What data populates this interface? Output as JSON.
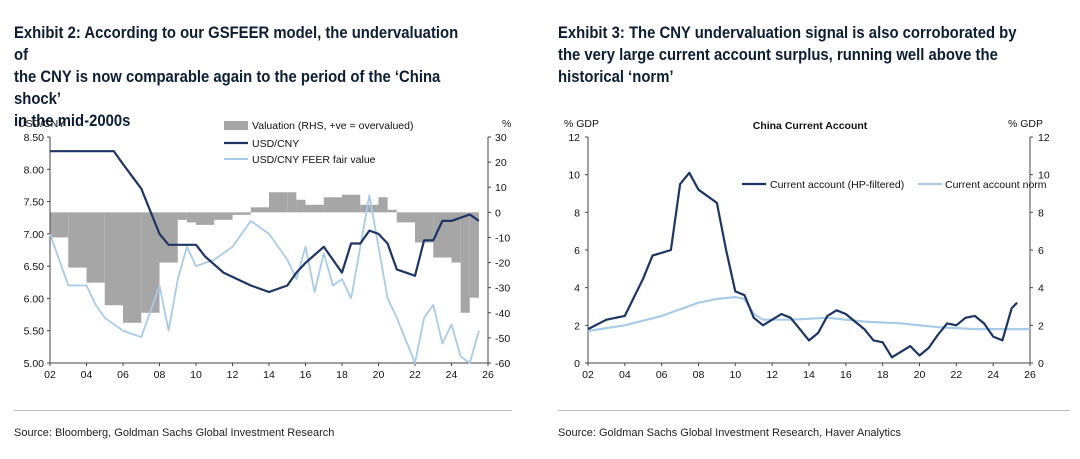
{
  "panel_left": {
    "title_lines": [
      "Exhibit 2: According to our GSFEER model, the undervaluation of",
      "the CNY is now comparable again to the period of the ‘China shock’",
      "in the mid-2000s"
    ],
    "source": "Source: Bloomberg, Goldman Sachs Global Investment Research"
  },
  "panel_right": {
    "title_lines": [
      "Exhibit 3: The CNY undervaluation signal is also corroborated by",
      "the very large current account surplus, running well above the",
      "historical ‘norm’"
    ],
    "source": "Source: Goldman Sachs Global Investment Research, Haver Analytics"
  },
  "colors": {
    "navy": "#1c3565",
    "lightblue": "#a8cbe8",
    "gray": "#a6a6a6",
    "title": "#0d1d33"
  },
  "chart_data": [
    {
      "type": "line",
      "title": "",
      "left_axis_label": "USD/CNY",
      "right_axis_label": "%",
      "ylim": [
        5.0,
        8.5
      ],
      "yticks": [
        "5.00",
        "5.50",
        "6.00",
        "6.50",
        "7.00",
        "7.50",
        "8.00",
        "8.50"
      ],
      "y2lim": [
        -60,
        30
      ],
      "y2ticks": [
        "-60",
        "-50",
        "-40",
        "-30",
        "-20",
        "-10",
        "0",
        "10",
        "20",
        "30"
      ],
      "xlim": [
        2002,
        2026
      ],
      "xticks": [
        "02",
        "04",
        "06",
        "08",
        "10",
        "12",
        "14",
        "16",
        "18",
        "20",
        "22",
        "24",
        "26"
      ],
      "legend": [
        "Valuation (RHS, +ve = overvalued)",
        "USD/CNY",
        "USD/CNY FEER fair value"
      ],
      "series": [
        {
          "name": "Valuation (RHS, +ve = overvalued)",
          "kind": "bar",
          "axis": "right",
          "color": "#a6a6a6",
          "points": [
            [
              2002,
              -10
            ],
            [
              2003,
              -22
            ],
            [
              2004,
              -28
            ],
            [
              2005,
              -37
            ],
            [
              2006,
              -44
            ],
            [
              2007,
              -40
            ],
            [
              2008,
              -20
            ],
            [
              2009,
              -3
            ],
            [
              2009.5,
              -4
            ],
            [
              2010,
              -5
            ],
            [
              2011,
              -3
            ],
            [
              2012,
              -1
            ],
            [
              2013,
              2
            ],
            [
              2014,
              8
            ],
            [
              2015,
              8
            ],
            [
              2015.5,
              5
            ],
            [
              2016,
              3
            ],
            [
              2017,
              6
            ],
            [
              2018,
              7
            ],
            [
              2019,
              3
            ],
            [
              2020,
              6
            ],
            [
              2020.5,
              1
            ],
            [
              2021,
              -4
            ],
            [
              2022,
              -12
            ],
            [
              2023,
              -18
            ],
            [
              2024,
              -20
            ],
            [
              2024.5,
              -40
            ],
            [
              2025,
              -34
            ]
          ]
        },
        {
          "name": "USD/CNY",
          "kind": "line",
          "axis": "left",
          "color": "#1c3565",
          "points": [
            [
              2002,
              8.28
            ],
            [
              2004,
              8.28
            ],
            [
              2005.5,
              8.28
            ],
            [
              2006,
              8.08
            ],
            [
              2007,
              7.7
            ],
            [
              2008,
              7.0
            ],
            [
              2008.5,
              6.83
            ],
            [
              2010,
              6.83
            ],
            [
              2010.5,
              6.65
            ],
            [
              2011.5,
              6.4
            ],
            [
              2013,
              6.2
            ],
            [
              2014,
              6.1
            ],
            [
              2015,
              6.2
            ],
            [
              2015.5,
              6.4
            ],
            [
              2016,
              6.55
            ],
            [
              2017,
              6.8
            ],
            [
              2017.5,
              6.6
            ],
            [
              2018,
              6.4
            ],
            [
              2018.5,
              6.85
            ],
            [
              2019,
              6.85
            ],
            [
              2019.5,
              7.05
            ],
            [
              2020,
              7.0
            ],
            [
              2020.5,
              6.85
            ],
            [
              2021,
              6.45
            ],
            [
              2021.5,
              6.4
            ],
            [
              2022,
              6.35
            ],
            [
              2022.5,
              6.9
            ],
            [
              2023,
              6.9
            ],
            [
              2023.5,
              7.2
            ],
            [
              2024,
              7.2
            ],
            [
              2024.5,
              7.25
            ],
            [
              2025,
              7.3
            ],
            [
              2025.5,
              7.2
            ]
          ]
        },
        {
          "name": "USD/CNY FEER fair value",
          "kind": "line",
          "axis": "left",
          "color": "#a8cbe8",
          "points": [
            [
              2002,
              7.0
            ],
            [
              2003,
              6.2
            ],
            [
              2004,
              6.2
            ],
            [
              2004.5,
              5.9
            ],
            [
              2005,
              5.7
            ],
            [
              2006,
              5.5
            ],
            [
              2007,
              5.4
            ],
            [
              2008,
              6.2
            ],
            [
              2008.5,
              5.5
            ],
            [
              2009,
              6.3
            ],
            [
              2009.5,
              6.8
            ],
            [
              2010,
              6.5
            ],
            [
              2011,
              6.6
            ],
            [
              2012,
              6.8
            ],
            [
              2013,
              7.2
            ],
            [
              2014,
              7.0
            ],
            [
              2015,
              6.6
            ],
            [
              2015.5,
              6.3
            ],
            [
              2016,
              6.8
            ],
            [
              2016.5,
              6.1
            ],
            [
              2017,
              6.7
            ],
            [
              2017.5,
              6.2
            ],
            [
              2018,
              6.3
            ],
            [
              2018.5,
              6.0
            ],
            [
              2019,
              6.8
            ],
            [
              2019.5,
              7.6
            ],
            [
              2020,
              6.8
            ],
            [
              2020.5,
              6.0
            ],
            [
              2021,
              5.7
            ],
            [
              2022,
              5.0
            ],
            [
              2022.5,
              5.7
            ],
            [
              2023,
              5.9
            ],
            [
              2023.5,
              5.3
            ],
            [
              2024,
              5.6
            ],
            [
              2024.5,
              5.1
            ],
            [
              2025,
              5.0
            ],
            [
              2025.5,
              5.5
            ]
          ]
        }
      ]
    },
    {
      "type": "line",
      "title": "China Current Account",
      "left_axis_label": "% GDP",
      "right_axis_label": "% GDP",
      "ylim": [
        0,
        12
      ],
      "yticks": [
        "0",
        "2",
        "4",
        "6",
        "8",
        "10",
        "12"
      ],
      "xlim": [
        2002,
        2026
      ],
      "xticks": [
        "02",
        "04",
        "06",
        "08",
        "10",
        "12",
        "14",
        "16",
        "18",
        "20",
        "22",
        "24",
        "26"
      ],
      "legend": [
        "Current account (HP-filtered)",
        "Current account norm"
      ],
      "series": [
        {
          "name": "Current account (HP-filtered)",
          "color": "#1c3565",
          "points": [
            [
              2002,
              1.8
            ],
            [
              2003,
              2.3
            ],
            [
              2004,
              2.5
            ],
            [
              2005,
              4.5
            ],
            [
              2005.5,
              5.7
            ],
            [
              2006.5,
              6.0
            ],
            [
              2007,
              9.5
            ],
            [
              2007.5,
              10.1
            ],
            [
              2008,
              9.2
            ],
            [
              2009,
              8.5
            ],
            [
              2009.5,
              6.0
            ],
            [
              2010,
              3.8
            ],
            [
              2010.5,
              3.6
            ],
            [
              2011,
              2.4
            ],
            [
              2011.5,
              2.0
            ],
            [
              2012,
              2.3
            ],
            [
              2012.5,
              2.6
            ],
            [
              2013,
              2.4
            ],
            [
              2013.5,
              1.8
            ],
            [
              2014,
              1.2
            ],
            [
              2014.5,
              1.6
            ],
            [
              2015,
              2.5
            ],
            [
              2015.5,
              2.8
            ],
            [
              2016,
              2.6
            ],
            [
              2016.5,
              2.2
            ],
            [
              2017,
              1.8
            ],
            [
              2017.5,
              1.2
            ],
            [
              2018,
              1.1
            ],
            [
              2018.5,
              0.3
            ],
            [
              2019,
              0.6
            ],
            [
              2019.5,
              0.9
            ],
            [
              2020,
              0.4
            ],
            [
              2020.5,
              0.8
            ],
            [
              2021,
              1.5
            ],
            [
              2021.5,
              2.1
            ],
            [
              2022,
              2.0
            ],
            [
              2022.5,
              2.4
            ],
            [
              2023,
              2.5
            ],
            [
              2023.5,
              2.1
            ],
            [
              2024,
              1.4
            ],
            [
              2024.5,
              1.2
            ],
            [
              2025,
              2.9
            ],
            [
              2025.3,
              3.2
            ]
          ]
        },
        {
          "name": "Current account norm",
          "color": "#a8cbe8",
          "points": [
            [
              2002,
              1.7
            ],
            [
              2004,
              2.0
            ],
            [
              2006,
              2.5
            ],
            [
              2008,
              3.2
            ],
            [
              2009,
              3.4
            ],
            [
              2010,
              3.5
            ],
            [
              2010.5,
              3.4
            ],
            [
              2011,
              2.6
            ],
            [
              2011.5,
              2.3
            ],
            [
              2013,
              2.3
            ],
            [
              2015,
              2.4
            ],
            [
              2017,
              2.2
            ],
            [
              2019,
              2.1
            ],
            [
              2021,
              1.9
            ],
            [
              2023,
              1.8
            ],
            [
              2026,
              1.8
            ]
          ]
        }
      ]
    }
  ]
}
